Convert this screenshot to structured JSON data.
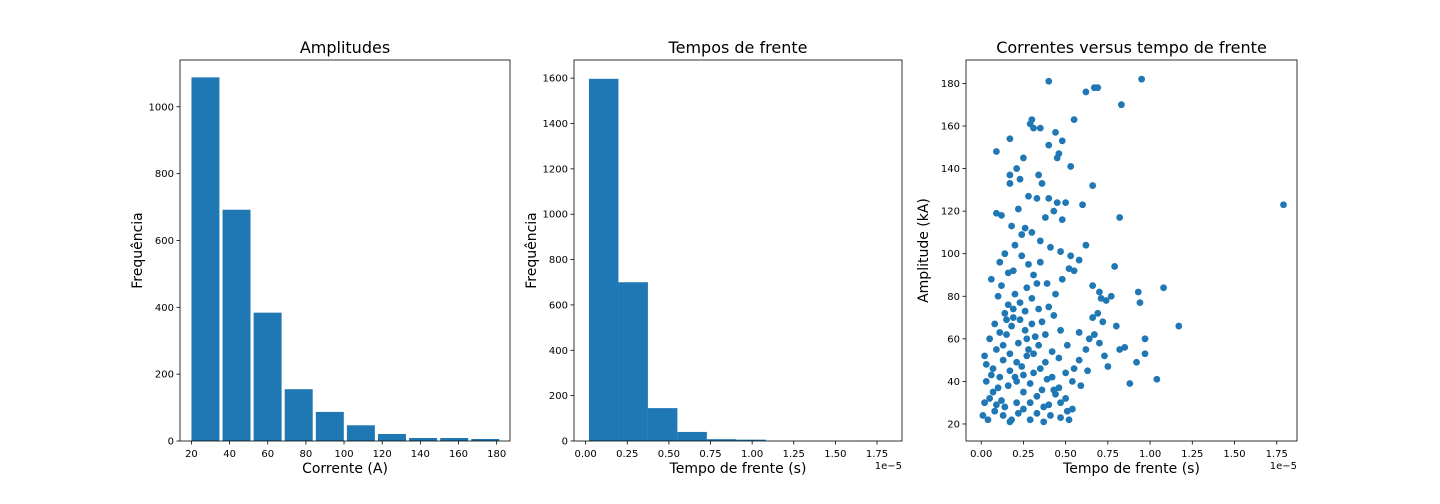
{
  "colors": {
    "accent": "#1f77b4",
    "axes": "#000000",
    "background": "#ffffff"
  },
  "chart_data": [
    {
      "type": "bar",
      "title": "Amplitudes",
      "xlabel": "Corrente (A)",
      "ylabel": "Frequência",
      "xlim": [
        14,
        187
      ],
      "ylim": [
        0,
        1140
      ],
      "xticks": [
        20,
        40,
        60,
        80,
        100,
        120,
        140,
        160,
        180
      ],
      "yticks": [
        0,
        200,
        400,
        600,
        800,
        1000
      ],
      "bin_edges": [
        20,
        36.3,
        52.6,
        68.9,
        85.2,
        101.5,
        117.8,
        134.1,
        150.4,
        166.7,
        183
      ],
      "bar_width_fraction": 0.9,
      "values": [
        1088,
        692,
        384,
        155,
        87,
        47,
        21,
        9,
        9,
        6
      ],
      "grid": false
    },
    {
      "type": "bar",
      "title": "Tempos de frente",
      "xlabel": "Tempo de frente (s)",
      "ylabel": "Frequência",
      "offset_text": "1e−5",
      "scale": 1e-05,
      "xlim": [
        -0.07,
        1.9
      ],
      "ylim": [
        0,
        1680
      ],
      "xticks": [
        0.0,
        0.25,
        0.5,
        0.75,
        1.0,
        1.25,
        1.5,
        1.75
      ],
      "xtick_labels": [
        "0.00",
        "0.25",
        "0.50",
        "0.75",
        "1.00",
        "1.25",
        "1.50",
        "1.75"
      ],
      "yticks": [
        0,
        200,
        400,
        600,
        800,
        1000,
        1200,
        1400,
        1600
      ],
      "bin_edges": [
        0.02,
        0.197,
        0.374,
        0.551,
        0.728,
        0.905,
        1.082,
        1.259,
        1.436,
        1.613,
        1.79
      ],
      "bar_width_fraction": 1.0,
      "values": [
        1597,
        700,
        145,
        40,
        8,
        6,
        0,
        0,
        0,
        1
      ],
      "grid": false
    },
    {
      "type": "scatter",
      "title": "Correntes versus tempo de frente",
      "xlabel": "Tempo de frente (s)",
      "ylabel": "Amplitude (kA)",
      "offset_text": "1e−5",
      "scale": 1e-05,
      "xlim": [
        -0.09,
        1.87
      ],
      "ylim": [
        12,
        191
      ],
      "xticks": [
        0.0,
        0.25,
        0.5,
        0.75,
        1.0,
        1.25,
        1.5,
        1.75
      ],
      "xtick_labels": [
        "0.00",
        "0.25",
        "0.50",
        "0.75",
        "1.00",
        "1.25",
        "1.50",
        "1.75"
      ],
      "yticks": [
        20,
        40,
        60,
        80,
        100,
        120,
        140,
        160,
        180
      ],
      "grid": false,
      "points": [
        [
          0.4,
          181
        ],
        [
          0.95,
          182
        ],
        [
          0.62,
          176
        ],
        [
          0.67,
          178
        ],
        [
          0.69,
          178
        ],
        [
          0.83,
          170
        ],
        [
          0.3,
          163
        ],
        [
          0.29,
          161
        ],
        [
          0.31,
          159
        ],
        [
          0.35,
          159
        ],
        [
          0.55,
          163
        ],
        [
          0.44,
          157
        ],
        [
          0.48,
          153
        ],
        [
          0.17,
          154
        ],
        [
          0.09,
          148
        ],
        [
          0.4,
          151
        ],
        [
          0.46,
          147
        ],
        [
          0.45,
          145
        ],
        [
          0.25,
          145
        ],
        [
          0.53,
          141
        ],
        [
          0.21,
          140
        ],
        [
          0.34,
          137
        ],
        [
          0.17,
          137
        ],
        [
          0.23,
          135
        ],
        [
          0.36,
          133
        ],
        [
          0.17,
          133
        ],
        [
          0.66,
          132
        ],
        [
          1.79,
          123
        ],
        [
          0.6,
          123
        ],
        [
          0.82,
          117
        ],
        [
          0.45,
          124
        ],
        [
          0.5,
          124
        ],
        [
          0.28,
          127
        ],
        [
          0.33,
          126
        ],
        [
          0.4,
          126
        ],
        [
          0.12,
          118
        ],
        [
          0.09,
          119
        ],
        [
          0.22,
          121
        ],
        [
          0.38,
          117
        ],
        [
          0.43,
          120
        ],
        [
          0.48,
          116
        ],
        [
          0.18,
          113
        ],
        [
          0.26,
          112
        ],
        [
          0.3,
          110
        ],
        [
          0.35,
          106
        ],
        [
          0.41,
          103
        ],
        [
          0.47,
          101
        ],
        [
          0.53,
          99
        ],
        [
          0.58,
          97
        ],
        [
          0.62,
          104
        ],
        [
          0.55,
          92
        ],
        [
          0.66,
          85
        ],
        [
          0.7,
          82
        ],
        [
          0.79,
          94
        ],
        [
          0.93,
          82
        ],
        [
          0.94,
          77
        ],
        [
          1.08,
          84
        ],
        [
          0.71,
          79
        ],
        [
          0.74,
          78
        ],
        [
          0.77,
          80
        ],
        [
          0.8,
          66
        ],
        [
          0.67,
          62
        ],
        [
          0.64,
          60
        ],
        [
          0.69,
          72
        ],
        [
          0.72,
          68
        ],
        [
          0.82,
          55
        ],
        [
          0.85,
          56
        ],
        [
          0.88,
          39
        ],
        [
          0.92,
          49
        ],
        [
          0.97,
          53
        ],
        [
          0.97,
          60
        ],
        [
          1.04,
          41
        ],
        [
          1.17,
          66
        ],
        [
          0.75,
          47
        ],
        [
          0.63,
          45
        ],
        [
          0.58,
          50
        ],
        [
          0.52,
          22
        ],
        [
          0.47,
          23
        ],
        [
          0.44,
          34
        ],
        [
          0.4,
          29
        ],
        [
          0.36,
          36
        ],
        [
          0.31,
          44
        ],
        [
          0.27,
          52
        ],
        [
          0.22,
          58
        ],
        [
          0.18,
          66
        ],
        [
          0.14,
          72
        ],
        [
          0.1,
          80
        ],
        [
          0.06,
          88
        ],
        [
          0.03,
          48
        ],
        [
          0.02,
          30
        ],
        [
          0.01,
          24
        ],
        [
          0.04,
          22
        ],
        [
          0.08,
          26
        ],
        [
          0.12,
          31
        ],
        [
          0.16,
          38
        ],
        [
          0.2,
          42
        ],
        [
          0.24,
          47
        ],
        [
          0.28,
          55
        ],
        [
          0.32,
          61
        ],
        [
          0.36,
          68
        ],
        [
          0.4,
          75
        ],
        [
          0.44,
          81
        ],
        [
          0.48,
          88
        ],
        [
          0.52,
          93
        ],
        [
          0.05,
          60
        ],
        [
          0.09,
          55
        ],
        [
          0.13,
          50
        ],
        [
          0.17,
          45
        ],
        [
          0.21,
          40
        ],
        [
          0.25,
          35
        ],
        [
          0.29,
          30
        ],
        [
          0.33,
          25
        ],
        [
          0.37,
          21
        ],
        [
          0.07,
          35
        ],
        [
          0.11,
          42
        ],
        [
          0.15,
          62
        ],
        [
          0.19,
          70
        ],
        [
          0.23,
          77
        ],
        [
          0.27,
          84
        ],
        [
          0.31,
          90
        ],
        [
          0.35,
          96
        ],
        [
          0.39,
          86
        ],
        [
          0.43,
          71
        ],
        [
          0.47,
          64
        ],
        [
          0.51,
          57
        ],
        [
          0.55,
          46
        ],
        [
          0.59,
          38
        ],
        [
          0.11,
          96
        ],
        [
          0.14,
          100
        ],
        [
          0.19,
          92
        ],
        [
          0.24,
          99
        ],
        [
          0.28,
          95
        ],
        [
          0.33,
          86
        ],
        [
          0.2,
          81
        ],
        [
          0.16,
          76
        ],
        [
          0.26,
          73
        ],
        [
          0.3,
          67
        ],
        [
          0.34,
          57
        ],
        [
          0.38,
          49
        ],
        [
          0.42,
          42
        ],
        [
          0.46,
          37
        ],
        [
          0.5,
          32
        ],
        [
          0.54,
          27
        ],
        [
          0.02,
          52
        ],
        [
          0.06,
          43
        ],
        [
          0.1,
          37
        ],
        [
          0.14,
          28
        ],
        [
          0.18,
          22
        ],
        [
          0.22,
          25
        ],
        [
          0.26,
          64
        ],
        [
          0.3,
          79
        ],
        [
          0.34,
          74
        ],
        [
          0.38,
          62
        ],
        [
          0.42,
          54
        ],
        [
          0.46,
          51
        ],
        [
          0.5,
          44
        ],
        [
          0.54,
          40
        ],
        [
          0.58,
          63
        ],
        [
          0.62,
          55
        ],
        [
          0.66,
          70
        ],
        [
          0.7,
          58
        ],
        [
          0.73,
          52
        ],
        [
          0.08,
          67
        ],
        [
          0.12,
          85
        ],
        [
          0.16,
          91
        ],
        [
          0.2,
          104
        ],
        [
          0.24,
          109
        ],
        [
          0.13,
          57
        ],
        [
          0.17,
          53
        ],
        [
          0.21,
          49
        ],
        [
          0.25,
          43
        ],
        [
          0.29,
          39
        ],
        [
          0.33,
          33
        ],
        [
          0.37,
          28
        ],
        [
          0.41,
          24
        ],
        [
          0.05,
          32
        ],
        [
          0.09,
          29
        ],
        [
          0.13,
          24
        ],
        [
          0.17,
          21
        ],
        [
          0.21,
          30
        ],
        [
          0.25,
          27
        ],
        [
          0.29,
          22
        ],
        [
          0.03,
          40
        ],
        [
          0.07,
          46
        ],
        [
          0.11,
          63
        ],
        [
          0.15,
          69
        ],
        [
          0.19,
          74
        ],
        [
          0.23,
          69
        ],
        [
          0.27,
          60
        ],
        [
          0.31,
          53
        ],
        [
          0.35,
          46
        ],
        [
          0.39,
          41
        ],
        [
          0.43,
          36
        ],
        [
          0.47,
          30
        ],
        [
          0.51,
          26
        ]
      ]
    }
  ]
}
